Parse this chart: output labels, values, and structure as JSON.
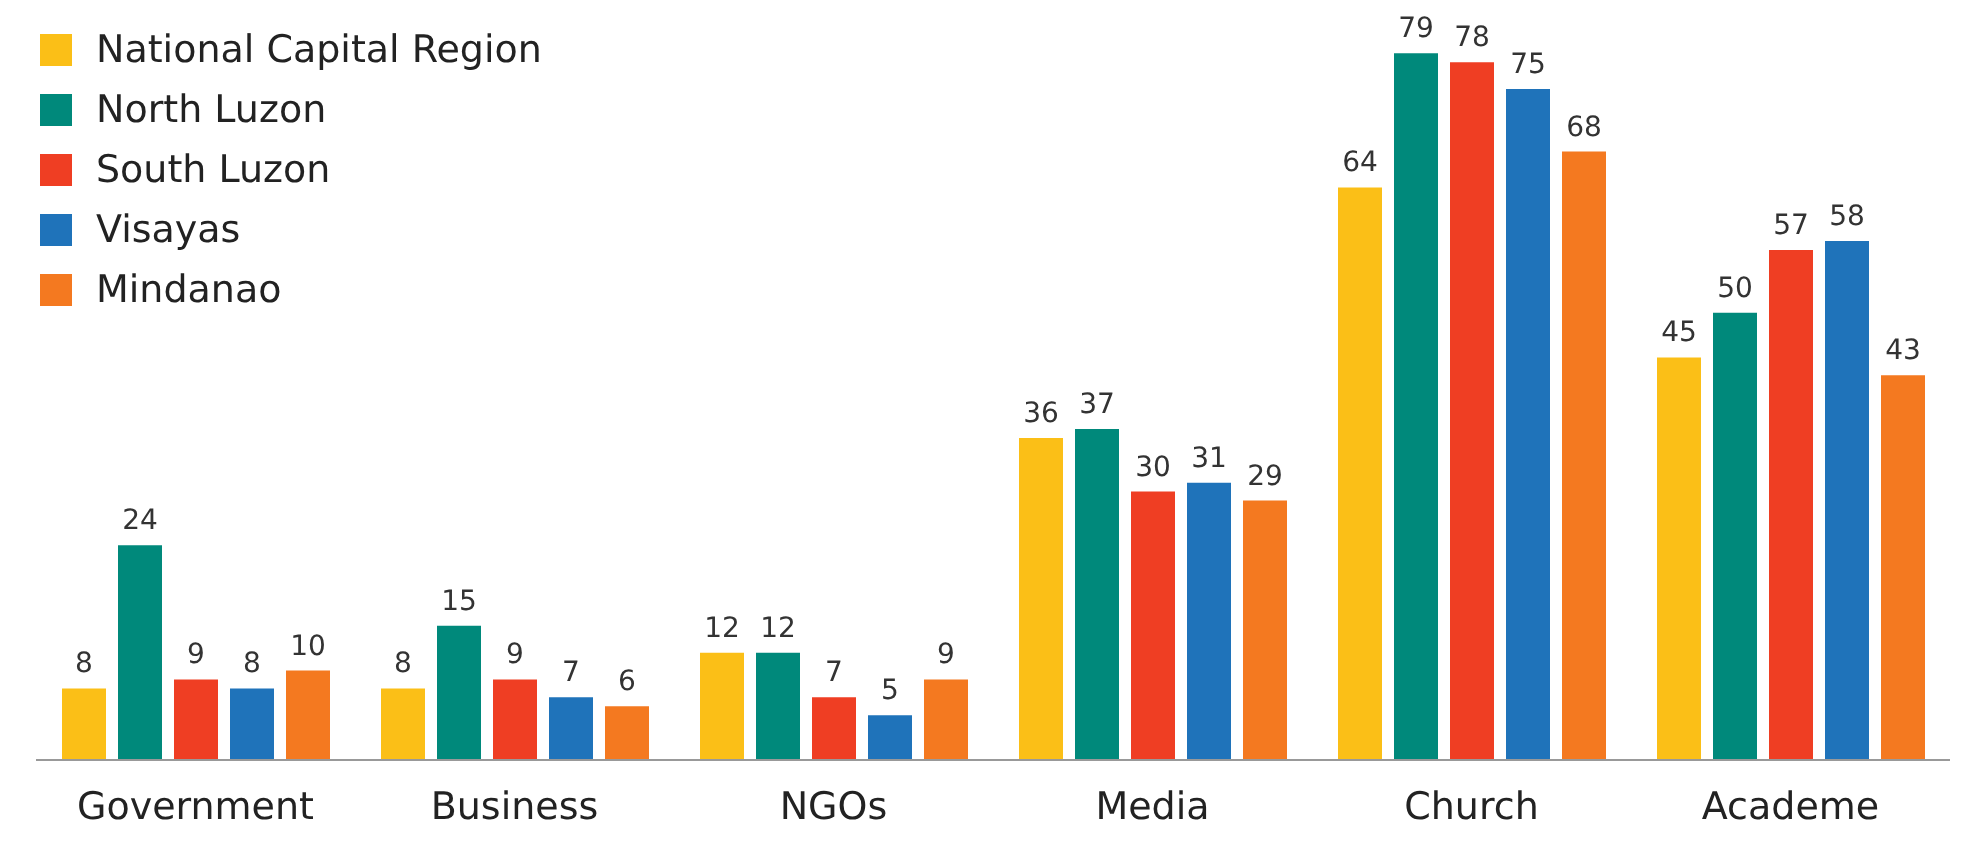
{
  "chart_data": {
    "type": "bar",
    "categories": [
      "Government",
      "Business",
      "NGOs",
      "Media",
      "Church",
      "Academe"
    ],
    "series": [
      {
        "name": "National Capital Region",
        "color": "#fbbf17",
        "values": [
          8,
          8,
          12,
          36,
          64,
          45
        ]
      },
      {
        "name": "North Luzon",
        "color": "#00897b",
        "values": [
          24,
          15,
          12,
          37,
          79,
          50
        ]
      },
      {
        "name": "South Luzon",
        "color": "#ef3e23",
        "values": [
          9,
          9,
          7,
          30,
          78,
          57
        ]
      },
      {
        "name": "Visayas",
        "color": "#1f73ba",
        "values": [
          8,
          7,
          5,
          31,
          75,
          58
        ]
      },
      {
        "name": "Mindanao",
        "color": "#f47920",
        "values": [
          10,
          6,
          9,
          29,
          68,
          43
        ]
      }
    ],
    "data_labels": true,
    "legend": "top left"
  }
}
